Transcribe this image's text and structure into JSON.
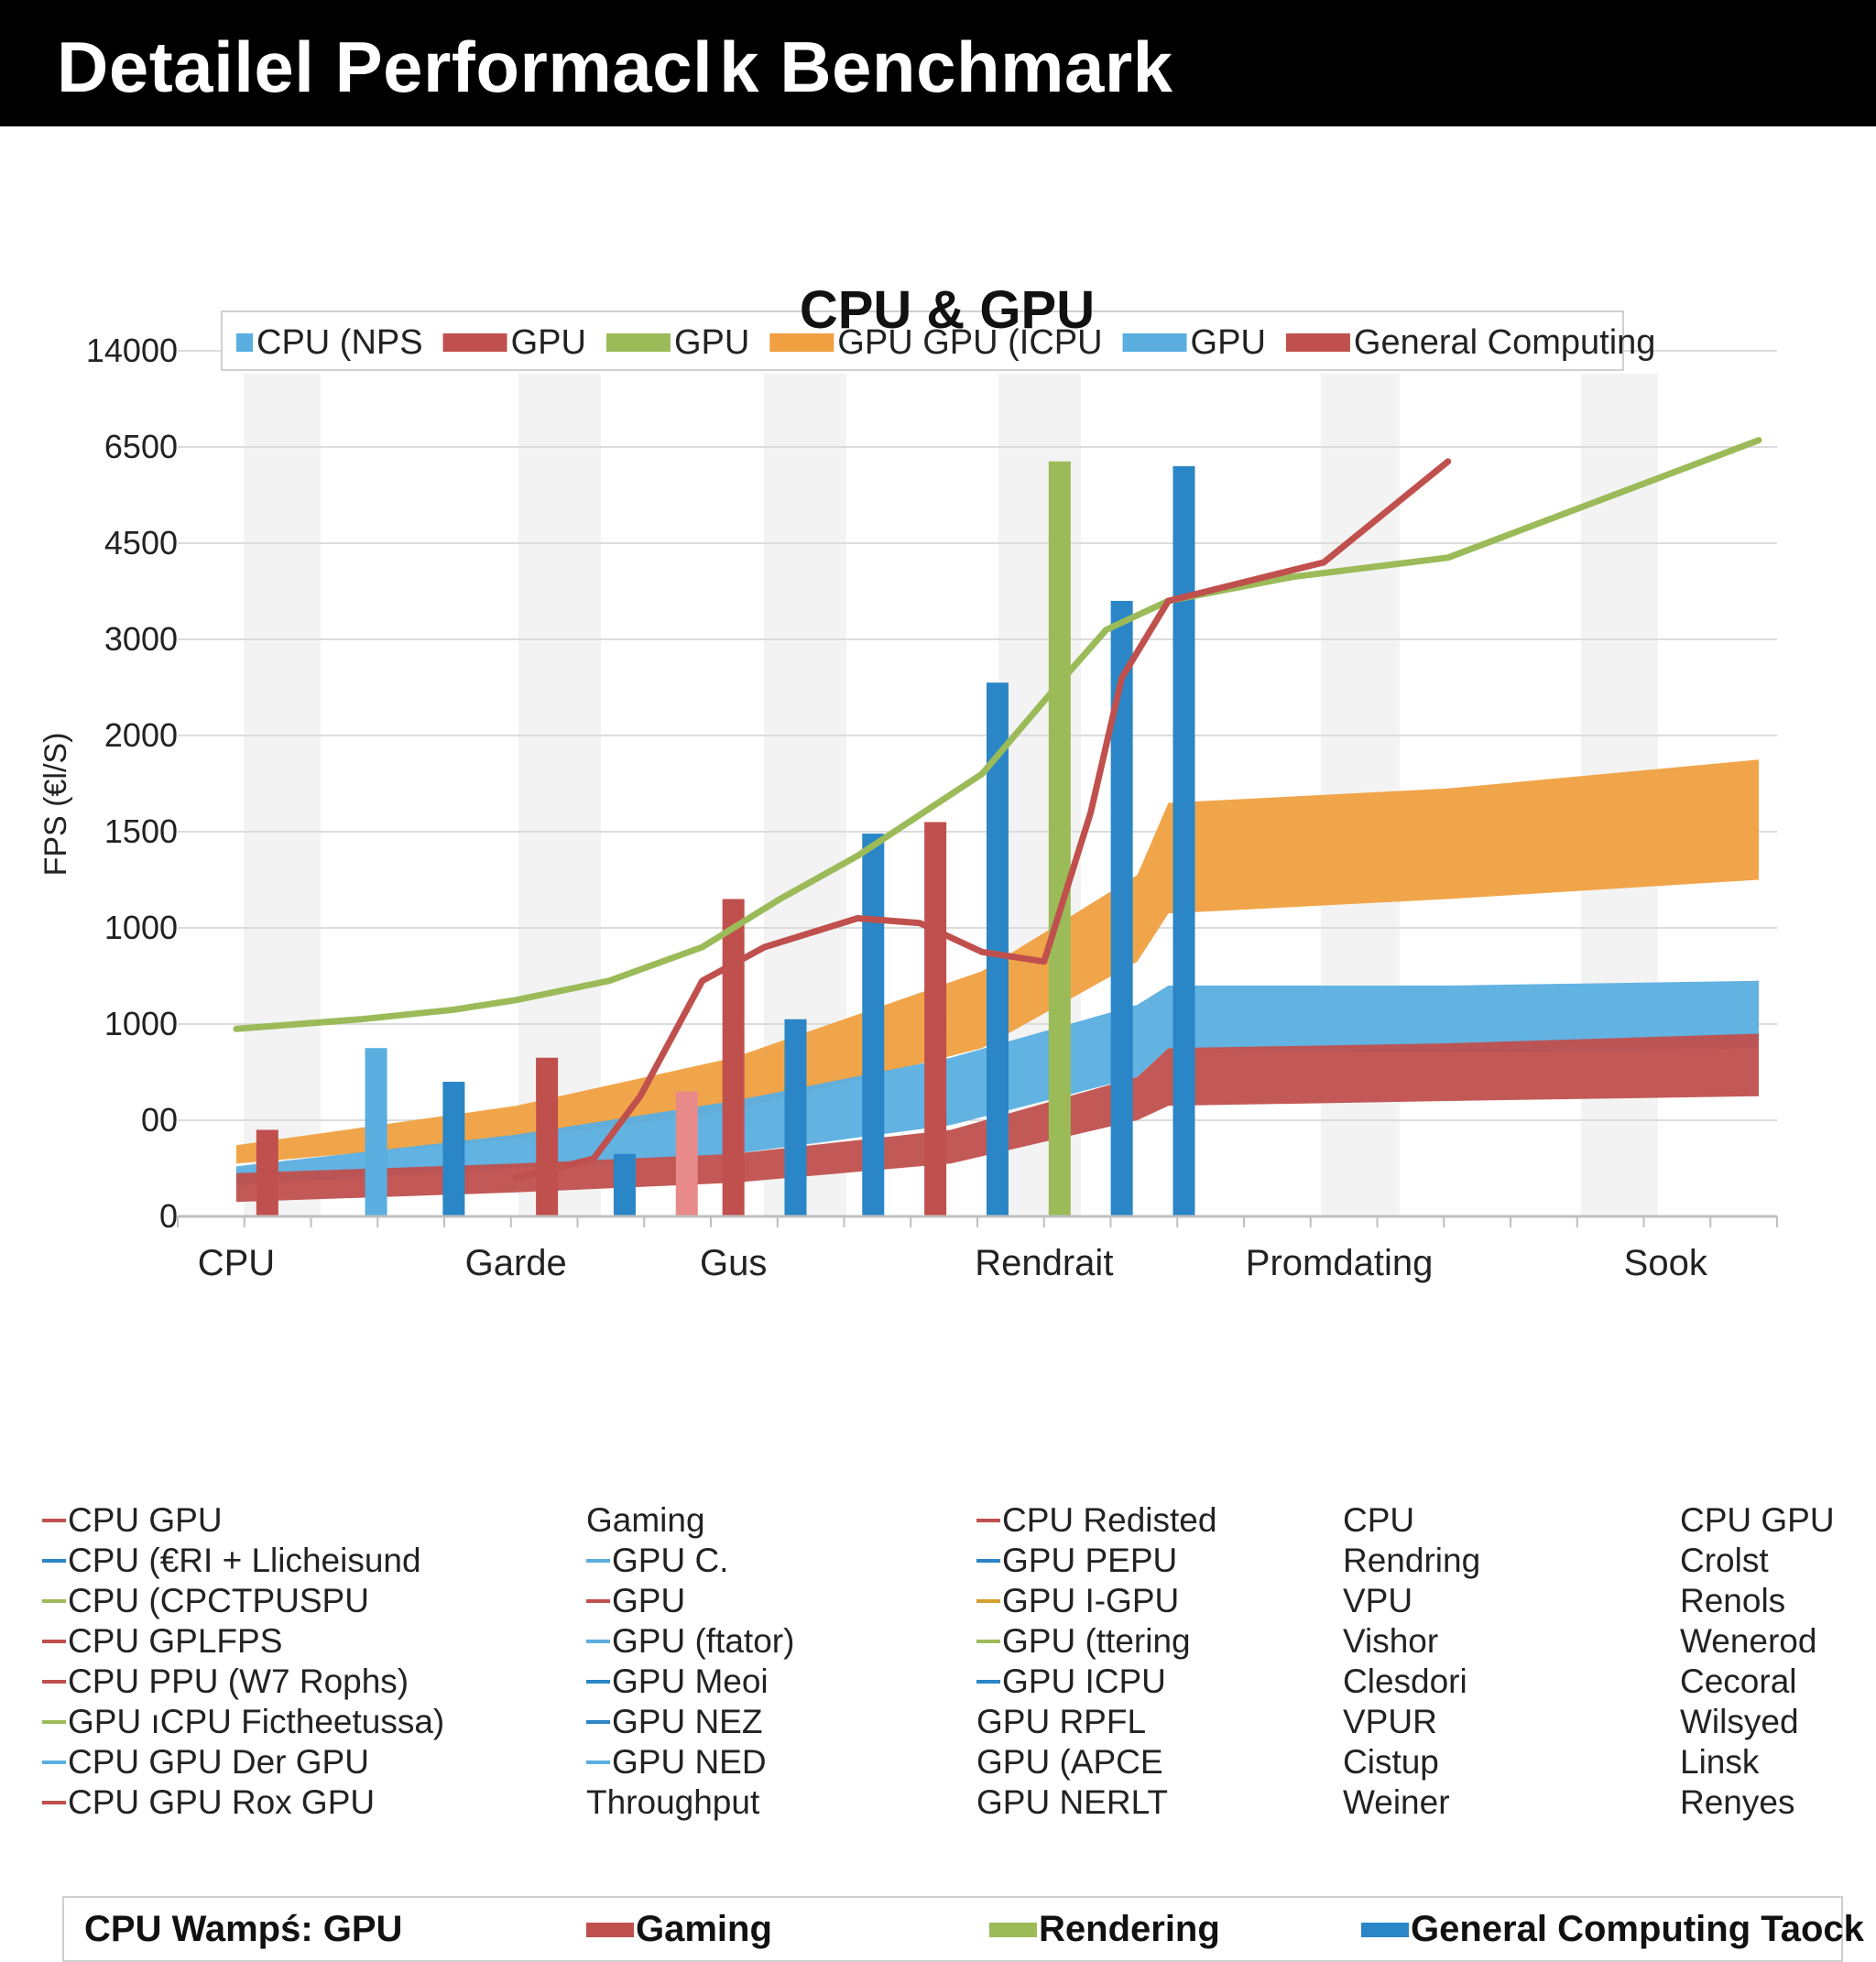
{
  "header": {
    "title": "Detailel Performacl k Benchmark"
  },
  "chart_data": {
    "type": "area",
    "title": "CPU & GPU",
    "ylabel": "FPS (€l/S)",
    "xlabel": "",
    "y_tick_labels": [
      "0",
      "00",
      "1000",
      "1000",
      "1500",
      "2000",
      "3000",
      "4500",
      "6500",
      "14000"
    ],
    "x_categories": [
      "CPU",
      "Garde",
      "Gus",
      "Rendrait",
      "Promdating",
      "Sook"
    ],
    "x_positions": [
      0.02,
      0.2,
      0.34,
      0.54,
      0.73,
      0.94
    ],
    "legend": [
      {
        "label": "CPU (NPS",
        "color": "#5aaee0"
      },
      {
        "label": "GPU",
        "color": "#c0504d"
      },
      {
        "label": "GPU",
        "color": "#9bbb59"
      },
      {
        "label": "GPU GPU  (ICPU",
        "color": "#f0a040"
      },
      {
        "label": "GPU",
        "color": "#5aaee0"
      },
      {
        "label": "General Computing",
        "color": "#c0504d"
      }
    ],
    "series": [
      {
        "name": "Orange band",
        "kind": "band",
        "color": "#f0a040",
        "x": [
          0.02,
          0.2,
          0.34,
          0.5,
          0.6,
          0.62,
          0.8,
          1.0
        ],
        "upper": [
          0.74,
          1.15,
          1.65,
          2.55,
          3.55,
          4.3,
          4.45,
          4.75
        ],
        "lower": [
          0.55,
          0.8,
          1.1,
          1.75,
          2.65,
          3.15,
          3.3,
          3.5
        ]
      },
      {
        "name": "Blue band",
        "kind": "band",
        "color": "#5aaee0",
        "x": [
          0.02,
          0.2,
          0.34,
          0.48,
          0.6,
          0.62,
          0.8,
          1.0
        ],
        "upper": [
          0.52,
          0.85,
          1.2,
          1.65,
          2.2,
          2.4,
          2.4,
          2.45
        ],
        "lower": [
          0.32,
          0.5,
          0.65,
          0.95,
          1.45,
          1.75,
          1.7,
          1.75
        ]
      },
      {
        "name": "Red band",
        "kind": "band",
        "color": "#c0504d",
        "x": [
          0.02,
          0.2,
          0.34,
          0.48,
          0.6,
          0.62,
          0.8,
          1.0
        ],
        "upper": [
          0.45,
          0.55,
          0.65,
          0.9,
          1.45,
          1.75,
          1.8,
          1.9
        ],
        "lower": [
          0.15,
          0.25,
          0.35,
          0.55,
          1.0,
          1.15,
          1.2,
          1.25
        ]
      },
      {
        "name": "Green line",
        "kind": "line",
        "color": "#9bbb59",
        "x": [
          0.02,
          0.1,
          0.16,
          0.2,
          0.26,
          0.32,
          0.37,
          0.42,
          0.5,
          0.55,
          0.58,
          0.62,
          0.7,
          0.8,
          1.0
        ],
        "y": [
          1.95,
          2.05,
          2.15,
          2.25,
          2.45,
          2.8,
          3.3,
          3.75,
          4.6,
          5.55,
          6.1,
          6.4,
          6.65,
          6.85,
          8.07
        ]
      },
      {
        "name": "Red line",
        "kind": "line",
        "color": "#c0504d",
        "x": [
          0.2,
          0.25,
          0.28,
          0.32,
          0.36,
          0.42,
          0.46,
          0.5,
          0.54,
          0.57,
          0.59,
          0.62,
          0.72,
          0.8
        ],
        "y": [
          0.4,
          0.6,
          1.25,
          2.45,
          2.8,
          3.1,
          3.05,
          2.75,
          2.65,
          4.2,
          5.6,
          6.4,
          6.8,
          7.85
        ]
      },
      {
        "name": "Bars",
        "kind": "bars",
        "x": [
          0.04,
          0.11,
          0.16,
          0.22,
          0.27,
          0.31,
          0.34,
          0.38,
          0.43,
          0.47,
          0.51,
          0.55,
          0.59,
          0.63
        ],
        "value": [
          0.9,
          1.75,
          1.4,
          1.65,
          0.65,
          1.3,
          3.3,
          2.05,
          3.98,
          4.1,
          5.55,
          7.85,
          6.4,
          7.8
        ],
        "color": [
          "#c0504d",
          "#5aaee0",
          "#2a86c6",
          "#c0504d",
          "#2a86c6",
          "#e88a8a",
          "#c0504d",
          "#2a86c6",
          "#2a86c6",
          "#c0504d",
          "#2a86c6",
          "#9bbb59",
          "#2a86c6",
          "#2a86c6"
        ]
      }
    ]
  },
  "key_columns": [
    {
      "items": [
        {
          "label": "CPU GPU",
          "color": "#c0504d"
        },
        {
          "label": "CPU (€RI + Llicheisund",
          "color": "#2a86c6"
        },
        {
          "label": "CPU (CPCTPUSPU",
          "color": "#9bbb59"
        },
        {
          "label": "CPU GPLFPS",
          "color": "#c0504d"
        },
        {
          "label": "CPU PPU (W7 Rophs)",
          "color": "#c0504d"
        },
        {
          "label": "GPU ıCPU Fictheetussa)",
          "color": "#9bbb59"
        },
        {
          "label": "CPU GPU Der GPU",
          "color": "#5aaee0"
        },
        {
          "label": "CPU GPU Rox GPU",
          "color": "#c0504d"
        }
      ]
    },
    {
      "items": [
        {
          "label": "Gaming",
          "color": ""
        },
        {
          "label": "GPU C.",
          "color": "#5aaee0"
        },
        {
          "label": "GPU",
          "color": "#c0504d"
        },
        {
          "label": "GPU (ftator)",
          "color": "#5aaee0"
        },
        {
          "label": "GPU Meoi",
          "color": "#2a86c6"
        },
        {
          "label": "GPU NEZ",
          "color": "#2a86c6"
        },
        {
          "label": "GPU NED",
          "color": "#5aaee0"
        },
        {
          "label": "Throughput",
          "color": ""
        }
      ]
    },
    {
      "items": [
        {
          "label": "CPU Redisted",
          "color": "#c0504d"
        },
        {
          "label": "GPU PEPU",
          "color": "#2a86c6"
        },
        {
          "label": "GPU I-GPU",
          "color": "#d4a030"
        },
        {
          "label": "GPU (ttering",
          "color": "#9bbb59"
        },
        {
          "label": "GPU ICPU",
          "color": "#2a86c6"
        },
        {
          "label": "GPU RPFL",
          "color": ""
        },
        {
          "label": "GPU (APCE",
          "color": ""
        },
        {
          "label": "GPU NERLT",
          "color": ""
        }
      ]
    },
    {
      "items": [
        {
          "label": "CPU",
          "color": ""
        },
        {
          "label": "Rendring",
          "color": ""
        },
        {
          "label": "VPU",
          "color": ""
        },
        {
          "label": "Vishor",
          "color": ""
        },
        {
          "label": "Clesdori",
          "color": ""
        },
        {
          "label": "VPUR",
          "color": ""
        },
        {
          "label": "Cistup",
          "color": ""
        },
        {
          "label": "Weiner",
          "color": ""
        }
      ]
    },
    {
      "items": [
        {
          "label": "CPU GPU",
          "color": ""
        },
        {
          "label": "Crolst",
          "color": ""
        },
        {
          "label": "Renols",
          "color": ""
        },
        {
          "label": "Wenerod",
          "color": ""
        },
        {
          "label": "Cecoral",
          "color": ""
        },
        {
          "label": "Wilsyed",
          "color": ""
        },
        {
          "label": "Linsk",
          "color": ""
        },
        {
          "label": "Renyes",
          "color": ""
        }
      ]
    }
  ],
  "bottom_legend": [
    {
      "label": "CPU Wampś: GPU",
      "color": ""
    },
    {
      "label": "Gaming",
      "color": "#c0504d"
    },
    {
      "label": "Rendering",
      "color": "#9bbb59"
    },
    {
      "label": "General Computing Taock",
      "color": "#2a86c6"
    }
  ]
}
